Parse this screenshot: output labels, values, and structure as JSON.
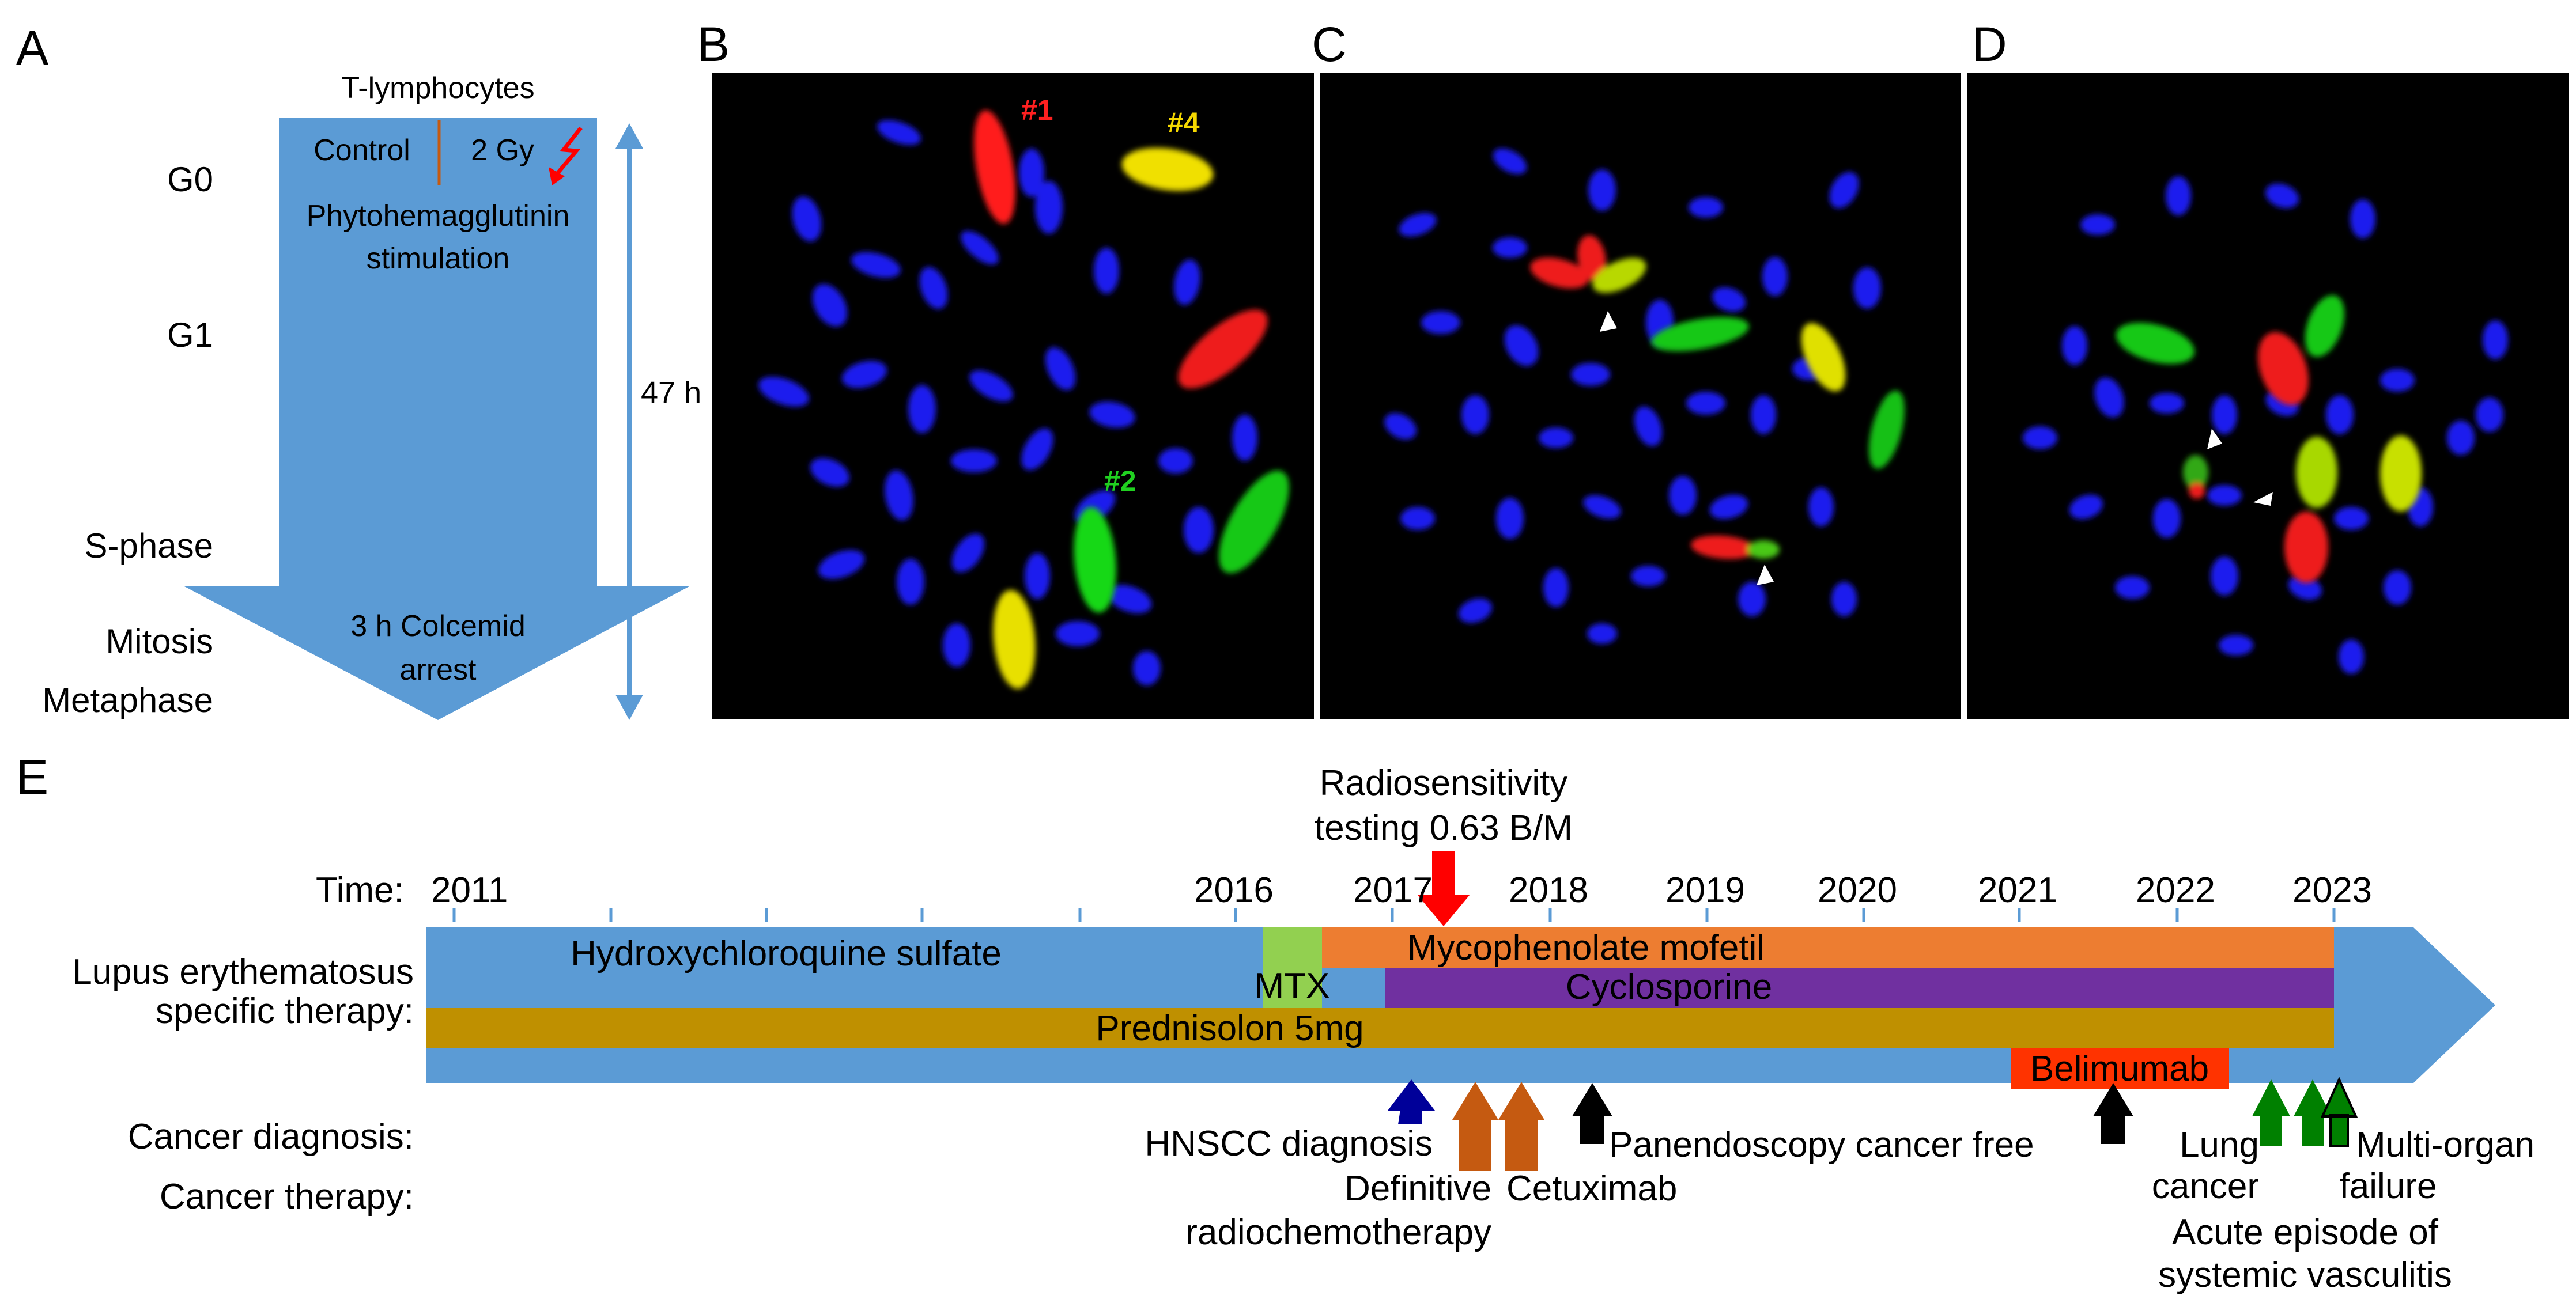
{
  "panel_letters": {
    "a": "A",
    "b": "B",
    "c": "C",
    "d": "D",
    "e": "E"
  },
  "panel_a": {
    "title": "T-lymphocytes",
    "control": "Control",
    "dose": "2 Gy",
    "stim_line1": "Phytohemagglutinin",
    "stim_line2": "stimulation",
    "arrest_line1": "3 h Colcemid",
    "arrest_line2": "arrest",
    "duration": "47 h",
    "phases": {
      "g0": "G0",
      "g1": "G1",
      "s": "S-phase",
      "mitosis": "Mitosis",
      "metaphase": "Metaphase"
    },
    "colors": {
      "flow": "#5b9bd5",
      "lightning": "#ff0000",
      "divider": "#c55a11"
    }
  },
  "panel_b": {
    "labels": {
      "c1": "#1",
      "c4": "#4",
      "c2": "#2"
    },
    "label_colors": {
      "c1": "#ff2020",
      "c4": "#f5d800",
      "c2": "#20d020"
    }
  },
  "panel_e": {
    "time_label": "Time:",
    "years": [
      "2011",
      "2016",
      "2017",
      "2018",
      "2019",
      "2020",
      "2021",
      "2022",
      "2023"
    ],
    "radio_line1": "Radiosensitivity",
    "radio_line2": "testing 0.63 B/M",
    "row_labels": {
      "lupus1": "Lupus erythematosus",
      "lupus2": "specific therapy:",
      "diag": "Cancer diagnosis:",
      "ther": "Cancer therapy:"
    },
    "therapies": {
      "hcq": "Hydroxychloroquine sulfate",
      "mtx": "MTX",
      "mmf": "Mycophenolate mofetil",
      "cyc": "Cyclosporine",
      "pred": "Prednisolon 5mg",
      "bel": "Belimumab"
    },
    "events": {
      "hnscc": "HNSCC diagnosis",
      "def1": "Definitive",
      "def2": "radiochemotherapy",
      "cetux": "Cetuximab",
      "pan": "Panendoscopy cancer free",
      "lung1": "Lung",
      "lung2": "cancer",
      "mof1": "Multi-organ",
      "mof2": "failure",
      "acute1": "Acute episode of",
      "acute2": "systemic vasculitis"
    },
    "colors": {
      "timeline": "#5b9bd5",
      "hcq": "#5b9bd5",
      "mtx": "#92d050",
      "mmf": "#ed7d31",
      "cyc": "#7030a0",
      "pred": "#bf9000",
      "bel": "#ff3300",
      "radio": "#ff0000",
      "hnscc": "#000099",
      "therapy": "#c55a11",
      "pan": "#000000",
      "vasc": "#008000"
    }
  }
}
